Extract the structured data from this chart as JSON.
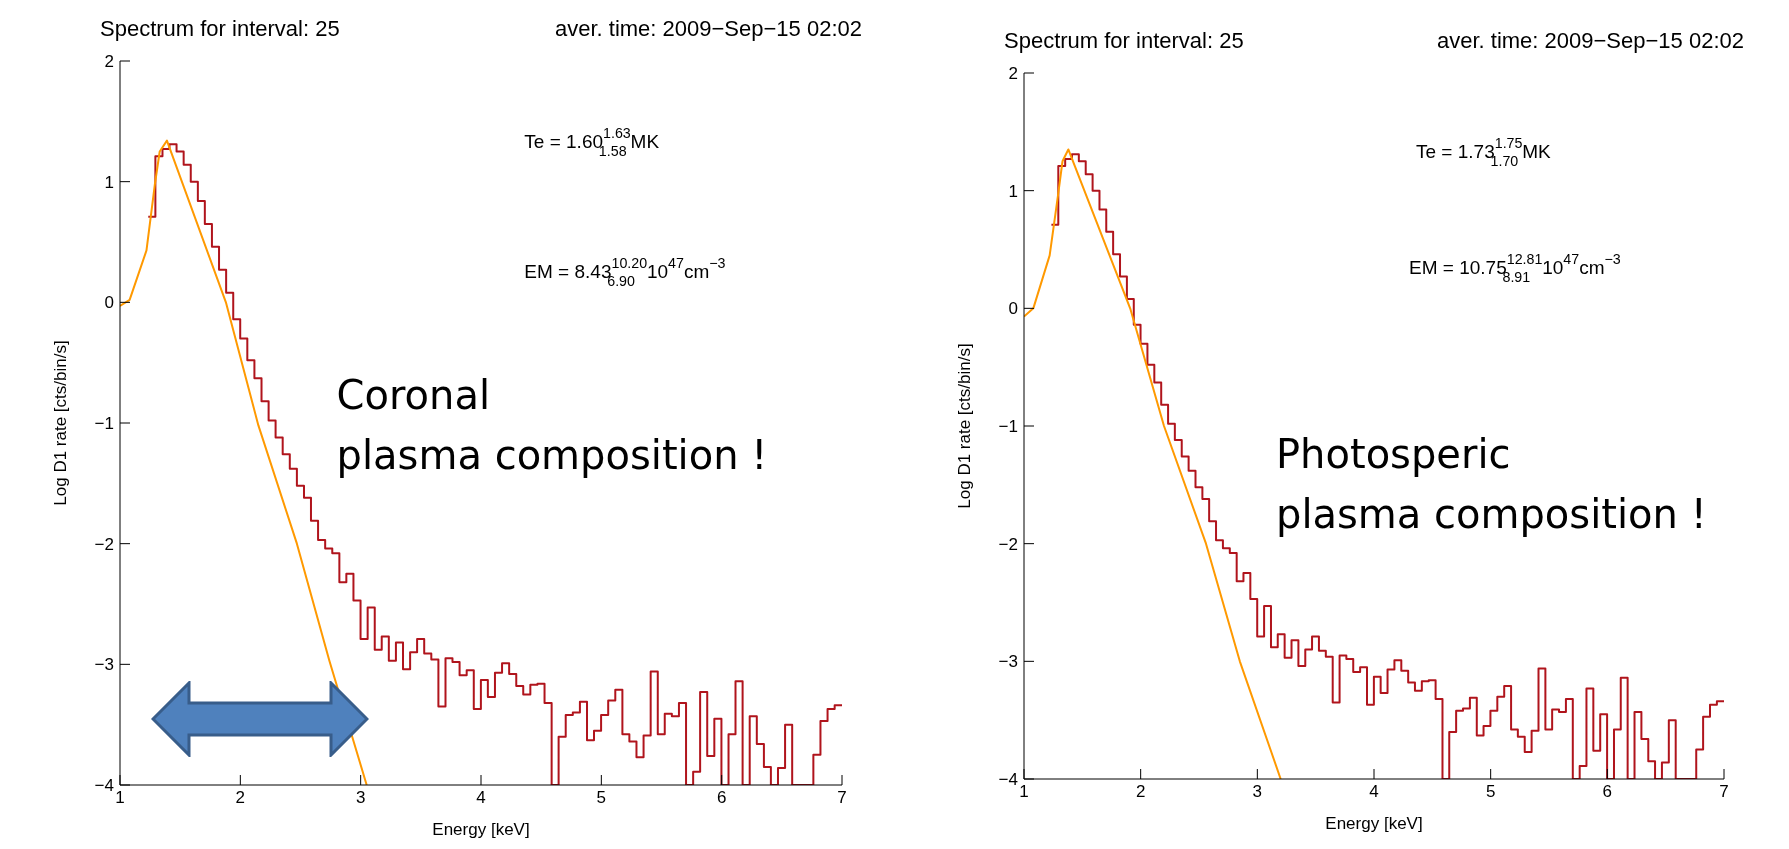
{
  "chart_data": [
    {
      "type": "histogram",
      "title": "Spectrum for interval: 25",
      "subtitle": "aver. time: 2009−Sep−15 02:02",
      "xlabel": "Energy [keV]",
      "ylabel": "Log D1 rate [cts/bin/s]",
      "xlim": [
        1,
        7
      ],
      "ylim": [
        -4,
        2
      ],
      "xticks": [
        1,
        2,
        3,
        4,
        5,
        6,
        7
      ],
      "yticks": [
        -4,
        -3,
        -2,
        -1,
        0,
        1,
        2
      ],
      "color": "#b0141c",
      "bins": [
        1.235,
        1.294,
        1.353,
        1.411,
        1.47,
        1.529,
        1.588,
        1.647,
        1.705,
        1.764,
        1.823,
        1.882,
        1.941,
        1.999,
        2.058,
        2.117,
        2.176,
        2.235,
        2.293,
        2.352,
        2.411,
        2.47,
        2.529,
        2.587,
        2.646,
        2.705,
        2.764,
        2.823,
        2.881,
        2.94,
        2.999,
        3.058,
        3.117,
        3.175,
        3.234,
        3.293,
        3.352,
        3.411,
        3.469,
        3.528,
        3.587,
        3.646,
        3.705,
        3.763,
        3.822,
        3.881,
        3.94,
        3.999,
        4.057,
        4.116,
        4.175,
        4.234,
        4.293,
        4.351,
        4.41,
        4.469,
        4.528,
        4.587,
        4.645,
        4.704,
        4.763,
        4.822,
        4.881,
        4.939,
        4.998,
        5.057,
        5.116,
        5.175,
        5.233,
        5.292,
        5.351,
        5.41,
        5.469,
        5.527,
        5.586,
        5.645,
        5.704,
        5.763,
        5.821,
        5.88,
        5.939,
        5.998,
        6.057,
        6.115,
        6.174,
        6.233,
        6.292,
        6.351,
        6.409,
        6.468,
        6.527,
        6.586,
        6.645,
        6.703,
        6.762,
        6.821,
        6.88,
        6.939,
        7.0
      ],
      "values": [
        0.71,
        1.21,
        1.27,
        1.31,
        1.25,
        1.14,
        1.0,
        0.84,
        0.65,
        0.46,
        0.27,
        0.08,
        -0.14,
        -0.3,
        -0.48,
        -0.63,
        -0.82,
        -0.98,
        -1.12,
        -1.26,
        -1.38,
        -1.52,
        -1.62,
        -1.81,
        -1.97,
        -2.04,
        -2.08,
        -2.32,
        -2.25,
        -2.47,
        -2.79,
        -2.53,
        -2.88,
        -2.77,
        -2.97,
        -2.82,
        -3.04,
        -2.9,
        -2.79,
        -2.91,
        -2.96,
        -3.35,
        -2.95,
        -2.98,
        -3.09,
        -3.05,
        -3.37,
        -3.13,
        -3.27,
        -3.07,
        -2.99,
        -3.08,
        -3.18,
        -3.25,
        -3.17,
        -3.16,
        -3.32,
        -4,
        -3.6,
        -3.42,
        -3.4,
        -3.31,
        -3.63,
        -3.55,
        -3.42,
        -3.3,
        -3.21,
        -3.58,
        -3.64,
        -3.77,
        -3.59,
        -3.06,
        -3.58,
        -3.41,
        -3.43,
        -3.32,
        -4,
        -3.89,
        -3.23,
        -3.76,
        -3.45,
        -4,
        -3.58,
        -3.14,
        -4,
        -3.43,
        -3.66,
        -3.85,
        -4,
        -3.86,
        -3.5,
        -4,
        -4,
        -4,
        -3.75,
        -3.47,
        -3.37,
        -3.34
      ],
      "series": [
        {
          "type": "line",
          "color": "#ff9900",
          "x": [
            1,
            1.08,
            1.22,
            1.29,
            1.33,
            1.39,
            1.88,
            2.15,
            2.47,
            2.74,
            3.05
          ],
          "values": [
            -0.03,
            0.02,
            0.43,
            0.98,
            1.25,
            1.34,
            0,
            -1.02,
            -2,
            -2.97,
            -4
          ]
        }
      ],
      "annotations": [
        "Te =  1.60$^{1.63}$$_{1.58}$MK",
        "EM =  8.43$^{10.20}$$_{6.90}$10$^{47}$cm$^{−3}$",
        "Coronal\nplasma composition !"
      ]
    },
    {
      "type": "histogram",
      "title": "Spectrum for interval: 25",
      "subtitle": "aver. time: 2009−Sep−15 02:02",
      "xlabel": "Energy [keV]",
      "ylabel": "Log D1 rate [cts/bin/s]",
      "xlim": [
        1,
        7
      ],
      "ylim": [
        -4,
        2
      ],
      "xticks": [
        1,
        2,
        3,
        4,
        5,
        6,
        7
      ],
      "yticks": [
        -4,
        -3,
        -2,
        -1,
        0,
        1,
        2
      ],
      "color": "#b0141c",
      "bins": [
        1.235,
        1.294,
        1.353,
        1.411,
        1.47,
        1.529,
        1.588,
        1.647,
        1.705,
        1.764,
        1.823,
        1.882,
        1.941,
        1.999,
        2.058,
        2.117,
        2.176,
        2.235,
        2.293,
        2.352,
        2.411,
        2.47,
        2.529,
        2.587,
        2.646,
        2.705,
        2.764,
        2.823,
        2.881,
        2.94,
        2.999,
        3.058,
        3.117,
        3.175,
        3.234,
        3.293,
        3.352,
        3.411,
        3.469,
        3.528,
        3.587,
        3.646,
        3.705,
        3.763,
        3.822,
        3.881,
        3.94,
        3.999,
        4.057,
        4.116,
        4.175,
        4.234,
        4.293,
        4.351,
        4.41,
        4.469,
        4.528,
        4.587,
        4.645,
        4.704,
        4.763,
        4.822,
        4.881,
        4.939,
        4.998,
        5.057,
        5.116,
        5.175,
        5.233,
        5.292,
        5.351,
        5.41,
        5.469,
        5.527,
        5.586,
        5.645,
        5.704,
        5.763,
        5.821,
        5.88,
        5.939,
        5.998,
        6.057,
        6.115,
        6.174,
        6.233,
        6.292,
        6.351,
        6.409,
        6.468,
        6.527,
        6.586,
        6.645,
        6.703,
        6.762,
        6.821,
        6.88,
        6.939,
        7.0
      ],
      "values": [
        0.71,
        1.21,
        1.27,
        1.31,
        1.25,
        1.14,
        1.0,
        0.84,
        0.65,
        0.46,
        0.27,
        0.08,
        -0.14,
        -0.3,
        -0.48,
        -0.63,
        -0.82,
        -0.98,
        -1.12,
        -1.26,
        -1.38,
        -1.52,
        -1.62,
        -1.81,
        -1.97,
        -2.04,
        -2.08,
        -2.32,
        -2.25,
        -2.47,
        -2.79,
        -2.53,
        -2.88,
        -2.77,
        -2.97,
        -2.82,
        -3.04,
        -2.9,
        -2.79,
        -2.91,
        -2.96,
        -3.35,
        -2.95,
        -2.98,
        -3.09,
        -3.05,
        -3.37,
        -3.13,
        -3.27,
        -3.07,
        -2.99,
        -3.08,
        -3.18,
        -3.25,
        -3.17,
        -3.16,
        -3.32,
        -4,
        -3.6,
        -3.42,
        -3.4,
        -3.31,
        -3.63,
        -3.55,
        -3.42,
        -3.3,
        -3.21,
        -3.58,
        -3.64,
        -3.77,
        -3.59,
        -3.06,
        -3.58,
        -3.41,
        -3.43,
        -3.32,
        -4,
        -3.89,
        -3.23,
        -3.76,
        -3.45,
        -4,
        -3.58,
        -3.14,
        -4,
        -3.43,
        -3.66,
        -3.85,
        -4,
        -3.86,
        -3.5,
        -4,
        -4,
        -4,
        -3.75,
        -3.47,
        -3.37,
        -3.34
      ],
      "series": [
        {
          "type": "line",
          "color": "#ff9900",
          "x": [
            1,
            1.08,
            1.22,
            1.29,
            1.33,
            1.38,
            1.91,
            2.2,
            2.56,
            2.85,
            3.2
          ],
          "values": [
            -0.07,
            0,
            0.45,
            0.95,
            1.25,
            1.35,
            0,
            -1,
            -2,
            -3,
            -4
          ]
        }
      ],
      "annotations": [
        "Te =  1.73$^{1.75}$$_{1.70}$MK",
        "EM =  10.75$^{12.81}$$_{8.91}$10$^{47}$cm$^{−3}$",
        "Photosperic\nplasma composition !"
      ]
    }
  ]
}
